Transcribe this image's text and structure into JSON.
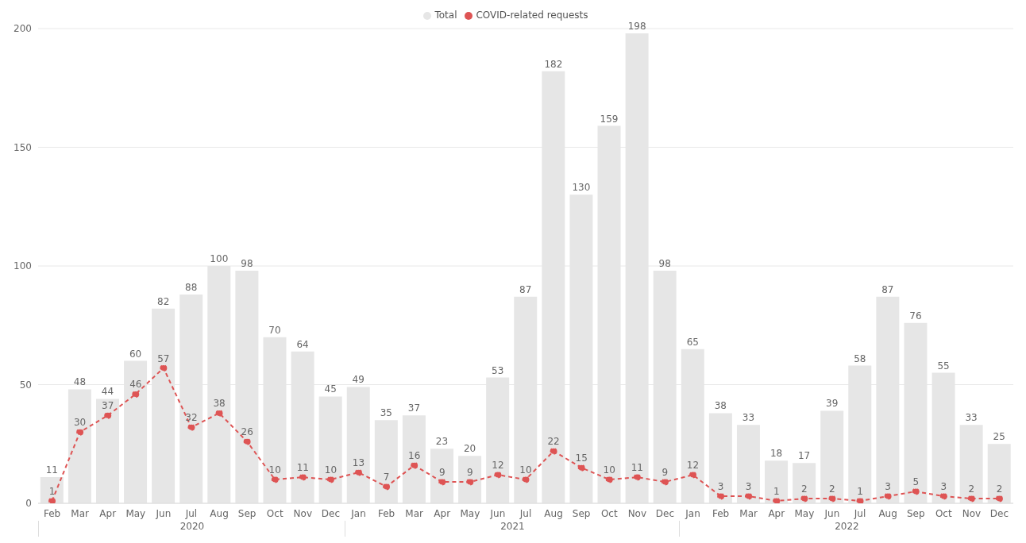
{
  "chart_data": {
    "type": "bar",
    "categories": [
      "Feb",
      "Mar",
      "Apr",
      "May",
      "Jun",
      "Jul",
      "Aug",
      "Sep",
      "Oct",
      "Nov",
      "Dec",
      "Jan",
      "Feb",
      "Mar",
      "Apr",
      "May",
      "Jun",
      "Jul",
      "Aug",
      "Sep",
      "Oct",
      "Nov",
      "Dec",
      "Jan",
      "Feb",
      "Mar",
      "Apr",
      "May",
      "Jun",
      "Jul",
      "Aug",
      "Sep",
      "Oct",
      "Nov",
      "Dec"
    ],
    "series": [
      {
        "name": "Total",
        "color": "#e6e6e6",
        "values": [
          11,
          48,
          44,
          60,
          82,
          88,
          100,
          98,
          70,
          64,
          45,
          49,
          35,
          37,
          23,
          20,
          53,
          87,
          182,
          130,
          159,
          198,
          98,
          65,
          38,
          33,
          18,
          17,
          39,
          58,
          87,
          76,
          55,
          33,
          25
        ]
      },
      {
        "name": "COVID-related requests",
        "type": "line",
        "color": "#de5454",
        "values": [
          1,
          30,
          37,
          46,
          57,
          32,
          38,
          26,
          10,
          11,
          10,
          13,
          7,
          16,
          9,
          9,
          12,
          10,
          22,
          15,
          10,
          11,
          9,
          12,
          3,
          3,
          1,
          2,
          2,
          1,
          3,
          5,
          3,
          2,
          2
        ]
      }
    ],
    "annotations": [
      "2020",
      "2021",
      "2022"
    ],
    "ylim": [
      0,
      200
    ],
    "yticks": [
      0,
      50,
      100,
      150,
      200
    ],
    "grid": "y",
    "legend": "top",
    "marker": "circle",
    "line_style": "dashed",
    "data_labels": true
  }
}
